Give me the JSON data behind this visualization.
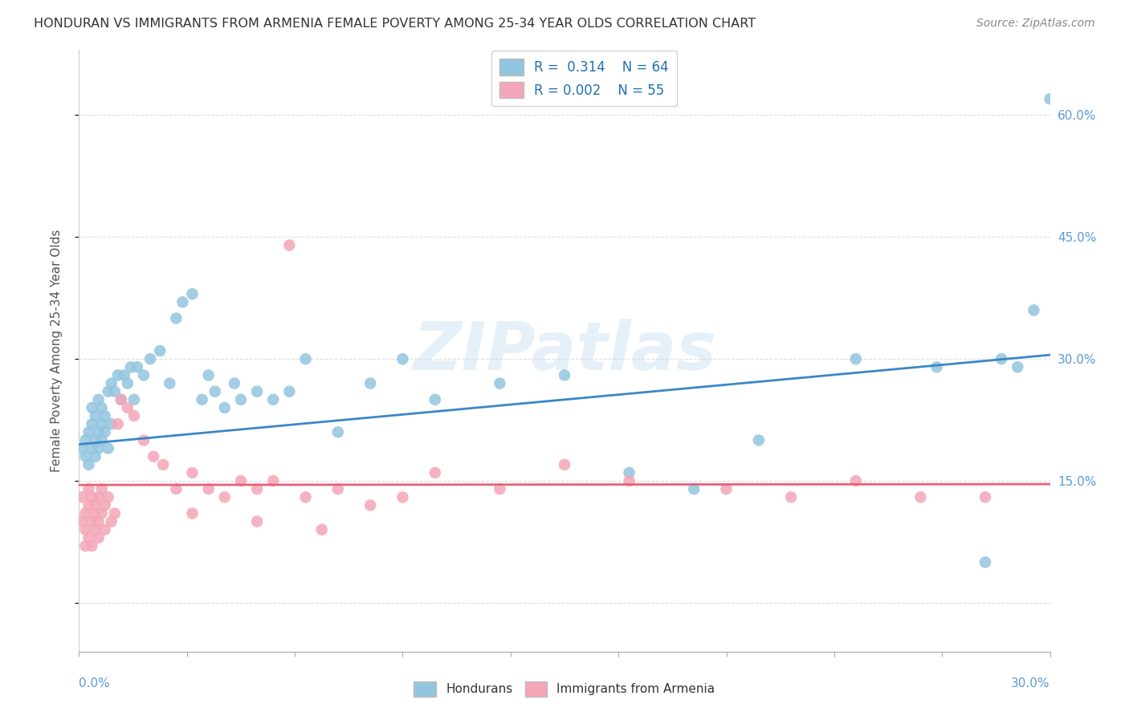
{
  "title": "HONDURAN VS IMMIGRANTS FROM ARMENIA FEMALE POVERTY AMONG 25-34 YEAR OLDS CORRELATION CHART",
  "source": "Source: ZipAtlas.com",
  "ylabel": "Female Poverty Among 25-34 Year Olds",
  "x_range": [
    0.0,
    0.3
  ],
  "y_range": [
    -0.06,
    0.68
  ],
  "blue_color": "#92c5de",
  "pink_color": "#f4a6b8",
  "blue_line_color": "#3a87c8",
  "pink_line_color": "#e8607a",
  "watermark": "ZIPatlas",
  "grid_color": "#dddddd",
  "right_label_color": "#5b9bd5",
  "title_color": "#333333",
  "source_color": "#888888",
  "hon_x": [
    0.001,
    0.002,
    0.002,
    0.003,
    0.003,
    0.004,
    0.004,
    0.004,
    0.005,
    0.005,
    0.005,
    0.006,
    0.006,
    0.006,
    0.007,
    0.007,
    0.007,
    0.008,
    0.008,
    0.009,
    0.009,
    0.01,
    0.01,
    0.011,
    0.012,
    0.013,
    0.014,
    0.015,
    0.016,
    0.017,
    0.018,
    0.02,
    0.022,
    0.025,
    0.028,
    0.03,
    0.032,
    0.035,
    0.038,
    0.04,
    0.042,
    0.045,
    0.048,
    0.05,
    0.055,
    0.06,
    0.065,
    0.07,
    0.08,
    0.09,
    0.1,
    0.11,
    0.13,
    0.15,
    0.17,
    0.19,
    0.21,
    0.24,
    0.265,
    0.28,
    0.285,
    0.29,
    0.295,
    0.3
  ],
  "hon_y": [
    0.19,
    0.18,
    0.2,
    0.17,
    0.21,
    0.19,
    0.22,
    0.24,
    0.18,
    0.2,
    0.23,
    0.19,
    0.21,
    0.25,
    0.2,
    0.22,
    0.24,
    0.21,
    0.23,
    0.19,
    0.26,
    0.22,
    0.27,
    0.26,
    0.28,
    0.25,
    0.28,
    0.27,
    0.29,
    0.25,
    0.29,
    0.28,
    0.3,
    0.31,
    0.27,
    0.35,
    0.37,
    0.38,
    0.25,
    0.28,
    0.26,
    0.24,
    0.27,
    0.25,
    0.26,
    0.25,
    0.26,
    0.3,
    0.21,
    0.27,
    0.3,
    0.25,
    0.27,
    0.28,
    0.16,
    0.14,
    0.2,
    0.3,
    0.29,
    0.05,
    0.3,
    0.29,
    0.36,
    0.62
  ],
  "arm_x": [
    0.001,
    0.001,
    0.002,
    0.002,
    0.002,
    0.003,
    0.003,
    0.003,
    0.004,
    0.004,
    0.004,
    0.005,
    0.005,
    0.005,
    0.006,
    0.006,
    0.006,
    0.007,
    0.007,
    0.008,
    0.008,
    0.009,
    0.01,
    0.011,
    0.012,
    0.013,
    0.015,
    0.017,
    0.02,
    0.023,
    0.026,
    0.03,
    0.035,
    0.04,
    0.045,
    0.05,
    0.055,
    0.06,
    0.07,
    0.08,
    0.09,
    0.1,
    0.11,
    0.13,
    0.15,
    0.17,
    0.2,
    0.22,
    0.24,
    0.26,
    0.065,
    0.075,
    0.035,
    0.055,
    0.28
  ],
  "arm_y": [
    0.13,
    0.1,
    0.09,
    0.11,
    0.07,
    0.12,
    0.08,
    0.14,
    0.1,
    0.13,
    0.07,
    0.11,
    0.09,
    0.12,
    0.13,
    0.1,
    0.08,
    0.14,
    0.11,
    0.12,
    0.09,
    0.13,
    0.1,
    0.11,
    0.22,
    0.25,
    0.24,
    0.23,
    0.2,
    0.18,
    0.17,
    0.14,
    0.16,
    0.14,
    0.13,
    0.15,
    0.14,
    0.15,
    0.13,
    0.14,
    0.12,
    0.13,
    0.16,
    0.14,
    0.17,
    0.15,
    0.14,
    0.13,
    0.15,
    0.13,
    0.44,
    0.09,
    0.11,
    0.1,
    0.13
  ],
  "blue_line_x": [
    0.0,
    0.3
  ],
  "blue_line_y": [
    0.195,
    0.305
  ],
  "pink_line_y": [
    0.145,
    0.146
  ]
}
